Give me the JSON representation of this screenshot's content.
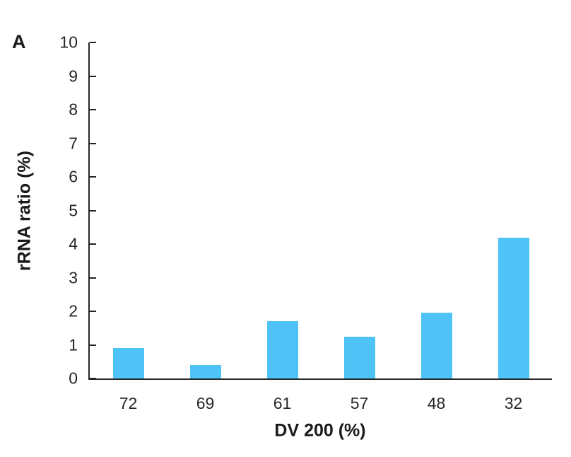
{
  "panel_label": "A",
  "chart_data": {
    "type": "bar",
    "title": "",
    "categories": [
      "72",
      "69",
      "61",
      "57",
      "48",
      "32"
    ],
    "values": [
      0.9,
      0.4,
      1.7,
      1.25,
      1.95,
      4.2
    ],
    "xlabel": "DV 200 (%)",
    "ylabel": "rRNA ratio (%)",
    "ylim": [
      0,
      10
    ],
    "yticks": [
      0,
      1,
      2,
      3,
      4,
      5,
      6,
      7,
      8,
      9,
      10
    ],
    "grid": false,
    "legend": "none",
    "bar_color": "#4FC3F5",
    "axis_color": "#262626"
  }
}
